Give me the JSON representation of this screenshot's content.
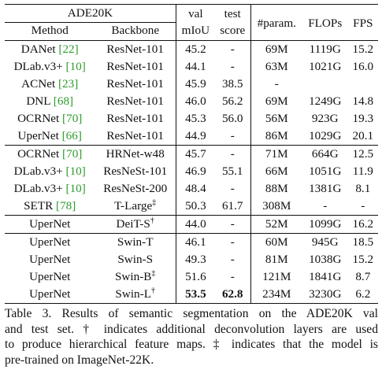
{
  "table": {
    "dataset_header": "ADE20K",
    "col_method": "Method",
    "col_backbone": "Backbone",
    "col_val_1": "val",
    "col_val_2": "mIoU",
    "col_test_1": "test",
    "col_test_2": "score",
    "col_param": "#param.",
    "col_flops": "FLOPs",
    "col_fps": "FPS",
    "sections": [
      [
        {
          "method": "DANet",
          "ref": "[22]",
          "backbone": "ResNet-101",
          "bb_sup": "",
          "val": "45.2",
          "test": "-",
          "param": "69M",
          "flops": "1119G",
          "fps": "15.2"
        },
        {
          "method": "DLab.v3+",
          "ref": "[10]",
          "backbone": "ResNet-101",
          "bb_sup": "",
          "val": "44.1",
          "test": "-",
          "param": "63M",
          "flops": "1021G",
          "fps": "16.0"
        },
        {
          "method": "ACNet",
          "ref": "[23]",
          "backbone": "ResNet-101",
          "bb_sup": "",
          "val": "45.9",
          "test": "38.5",
          "param": "-",
          "flops": "",
          "fps": ""
        },
        {
          "method": "DNL",
          "ref": "[68]",
          "backbone": "ResNet-101",
          "bb_sup": "",
          "val": "46.0",
          "test": "56.2",
          "param": "69M",
          "flops": "1249G",
          "fps": "14.8"
        },
        {
          "method": "OCRNet",
          "ref": "[70]",
          "backbone": "ResNet-101",
          "bb_sup": "",
          "val": "45.3",
          "test": "56.0",
          "param": "56M",
          "flops": "923G",
          "fps": "19.3"
        },
        {
          "method": "UperNet",
          "ref": "[66]",
          "backbone": "ResNet-101",
          "bb_sup": "",
          "val": "44.9",
          "test": "-",
          "param": "86M",
          "flops": "1029G",
          "fps": "20.1"
        }
      ],
      [
        {
          "method": "OCRNet",
          "ref": "[70]",
          "backbone": "HRNet-w48",
          "bb_sup": "",
          "val": "45.7",
          "test": "-",
          "param": "71M",
          "flops": "664G",
          "fps": "12.5"
        },
        {
          "method": "DLab.v3+",
          "ref": "[10]",
          "backbone": "ResNeSt-101",
          "bb_sup": "",
          "val": "46.9",
          "test": "55.1",
          "param": "66M",
          "flops": "1051G",
          "fps": "11.9"
        },
        {
          "method": "DLab.v3+",
          "ref": "[10]",
          "backbone": "ResNeSt-200",
          "bb_sup": "",
          "val": "48.4",
          "test": "-",
          "param": "88M",
          "flops": "1381G",
          "fps": "8.1"
        },
        {
          "method": "SETR",
          "ref": "[78]",
          "backbone": "T-Large",
          "bb_sup": "‡",
          "val": "50.3",
          "test": "61.7",
          "param": "308M",
          "flops": "-",
          "fps": "-"
        }
      ],
      [
        {
          "method": "UperNet",
          "ref": "",
          "backbone": "DeiT-S",
          "bb_sup": "†",
          "val": "44.0",
          "test": "-",
          "param": "52M",
          "flops": "1099G",
          "fps": "16.2"
        }
      ],
      [
        {
          "method": "UperNet",
          "ref": "",
          "backbone": "Swin-T",
          "bb_sup": "",
          "val": "46.1",
          "test": "-",
          "param": "60M",
          "flops": "945G",
          "fps": "18.5"
        },
        {
          "method": "UperNet",
          "ref": "",
          "backbone": "Swin-S",
          "bb_sup": "",
          "val": "49.3",
          "test": "-",
          "param": "81M",
          "flops": "1038G",
          "fps": "15.2"
        },
        {
          "method": "UperNet",
          "ref": "",
          "backbone": "Swin-B",
          "bb_sup": "‡",
          "val": "51.6",
          "test": "-",
          "param": "121M",
          "flops": "1841G",
          "fps": "8.7"
        },
        {
          "method": "UperNet",
          "ref": "",
          "backbone": "Swin-L",
          "bb_sup": "†",
          "val": "53.5",
          "test": "62.8",
          "param": "234M",
          "flops": "3230G",
          "fps": "6.2",
          "bold_val": true,
          "bold_test": true
        }
      ]
    ]
  },
  "caption": {
    "lines": [
      "Table 3. Results of semantic segmentation on the ADE20K val",
      "and test set. † indicates additional deconvolution layers are used",
      "to produce hierarchical feature maps. ‡ indicates that the model is",
      "pre-trained on ImageNet-22K."
    ]
  }
}
